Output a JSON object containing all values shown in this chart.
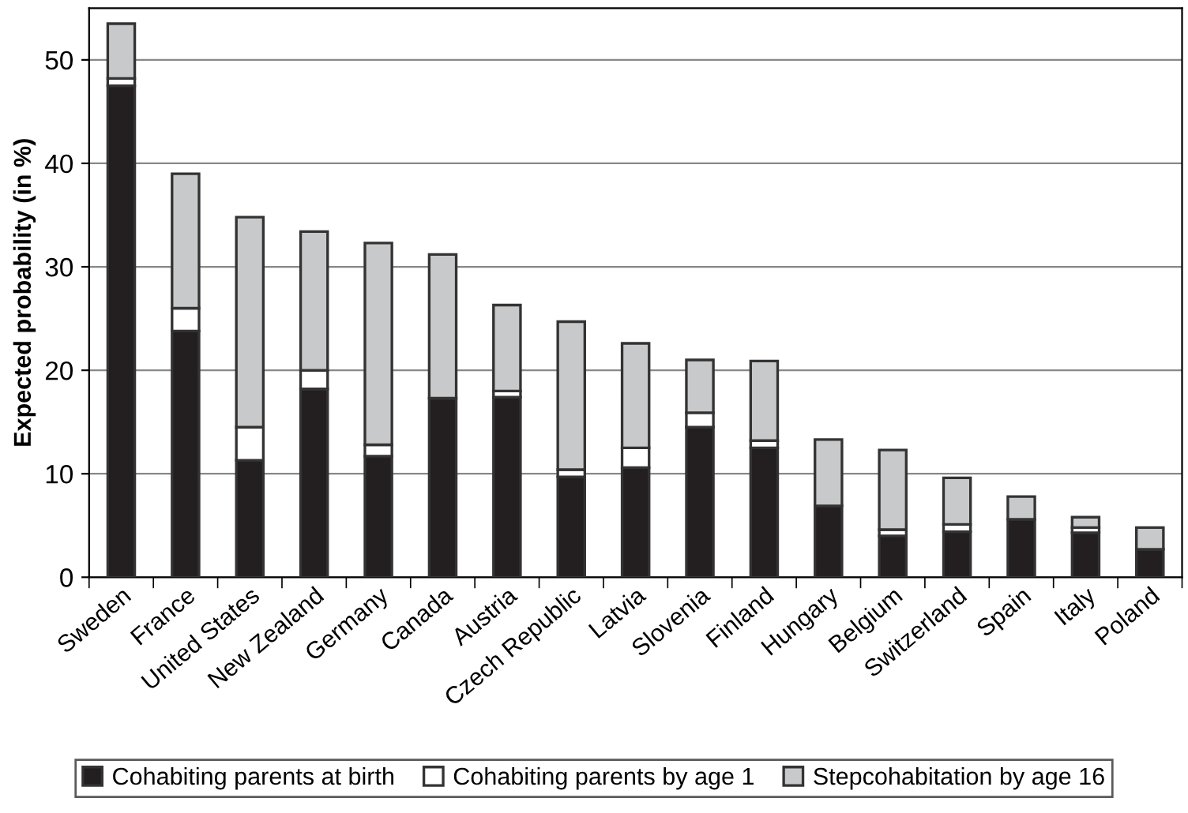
{
  "chart_data": {
    "type": "bar",
    "stacked": true,
    "ylabel": "Expected probability (in %)",
    "categories": [
      "Sweden",
      "France",
      "United States",
      "New Zealand",
      "Germany",
      "Canada",
      "Austria",
      "Czech Republic",
      "Latvia",
      "Slovenia",
      "Finland",
      "Hungary",
      "Belgium",
      "Switzerland",
      "Spain",
      "Italy",
      "Poland"
    ],
    "series": [
      {
        "name": "Cohabiting parents at birth",
        "color": "#231f20",
        "values": [
          47.5,
          23.8,
          11.3,
          18.2,
          11.7,
          17.3,
          17.4,
          9.7,
          10.6,
          14.5,
          12.5,
          6.9,
          4.0,
          4.4,
          5.6,
          4.3,
          2.7
        ]
      },
      {
        "name": "Cohabiting parents by age 1",
        "color": "#ffffff",
        "values": [
          0.7,
          2.2,
          3.2,
          1.8,
          1.1,
          0.0,
          0.6,
          0.7,
          1.9,
          1.4,
          0.7,
          0.0,
          0.6,
          0.7,
          0.0,
          0.5,
          0.0
        ]
      },
      {
        "name": "Stepcohabitation by age 16",
        "color": "#c8c9ca",
        "values": [
          5.3,
          13.0,
          20.3,
          13.4,
          19.5,
          13.9,
          8.3,
          14.3,
          10.1,
          5.1,
          7.7,
          6.4,
          7.7,
          4.5,
          2.2,
          1.0,
          2.1
        ]
      }
    ],
    "ylim": [
      0,
      55
    ],
    "yticks": [
      0,
      10,
      20,
      30,
      40,
      50
    ],
    "grid": "y",
    "legend": "bottom"
  }
}
